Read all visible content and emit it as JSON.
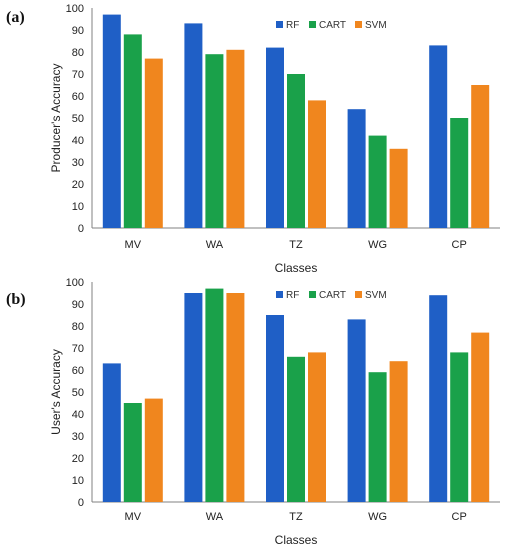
{
  "chart_data": [
    {
      "type": "bar",
      "panel_label": "(a)",
      "categories": [
        "MV",
        "WA",
        "TZ",
        "WG",
        "CP"
      ],
      "series": [
        {
          "name": "RF",
          "color": "#1f5fc6",
          "values": [
            97,
            93,
            82,
            54,
            83
          ]
        },
        {
          "name": "CART",
          "color": "#1aa14a",
          "values": [
            88,
            79,
            70,
            42,
            50
          ]
        },
        {
          "name": "SVM",
          "color": "#f0861e",
          "values": [
            77,
            81,
            58,
            36,
            65
          ]
        }
      ],
      "xlabel": "Classes",
      "ylabel": "Producer's Accuracy",
      "ylim": [
        0,
        100
      ],
      "yticks": [
        "0",
        "10",
        "20",
        "30",
        "40",
        "50",
        "60",
        "70",
        "80",
        "90",
        "100"
      ],
      "grid": false,
      "legend_position": "top-right"
    },
    {
      "type": "bar",
      "panel_label": "(b)",
      "categories": [
        "MV",
        "WA",
        "TZ",
        "WG",
        "CP"
      ],
      "series": [
        {
          "name": "RF",
          "color": "#1f5fc6",
          "values": [
            63,
            95,
            85,
            83,
            94
          ]
        },
        {
          "name": "CART",
          "color": "#1aa14a",
          "values": [
            45,
            97,
            66,
            59,
            68
          ]
        },
        {
          "name": "SVM",
          "color": "#f0861e",
          "values": [
            47,
            95,
            68,
            64,
            77
          ]
        }
      ],
      "xlabel": "Classes",
      "ylabel": "User's Accuracy",
      "ylim": [
        0,
        100
      ],
      "yticks": [
        "0",
        "10",
        "20",
        "30",
        "40",
        "50",
        "60",
        "70",
        "80",
        "90",
        "100"
      ],
      "grid": false,
      "legend_position": "top-right"
    }
  ]
}
